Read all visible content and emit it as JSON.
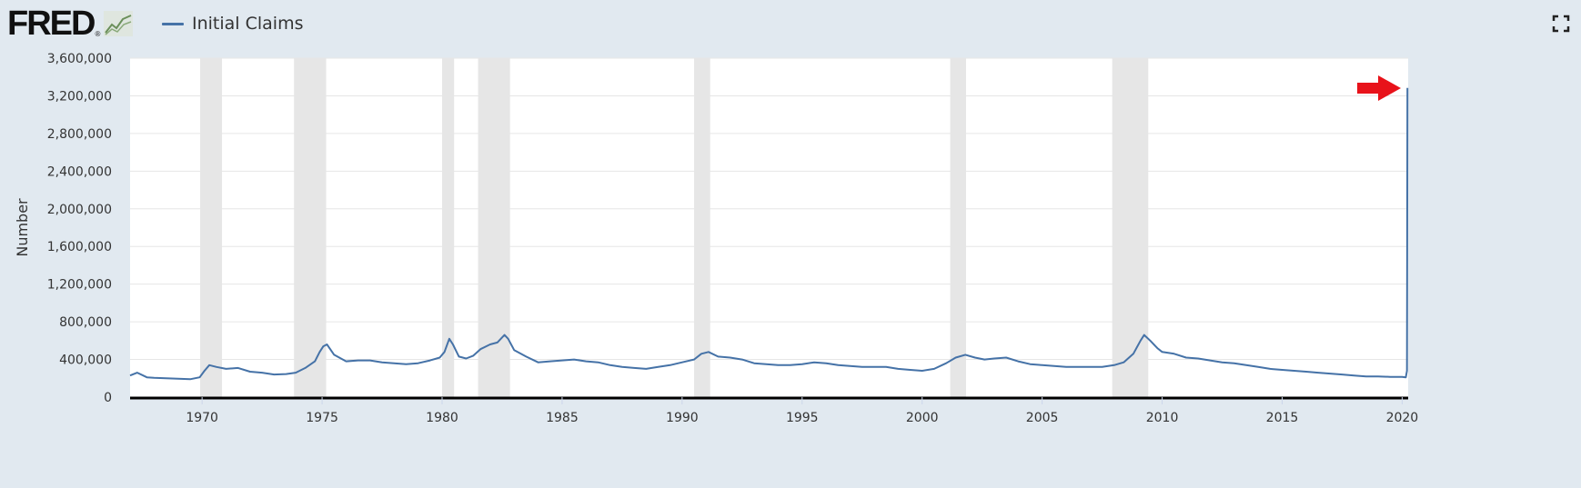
{
  "header": {
    "logo_text": "FRED",
    "logo_mark": "®",
    "logo_icon": "fred-graph-icon",
    "fullscreen_icon": "fullscreen-icon"
  },
  "colors": {
    "background": "#e1e9f0",
    "plot_background": "#ffffff",
    "series": "#4572a7",
    "recession": "#e6e6e6",
    "grid": "#e6e6e6",
    "arrow": "#e8121a"
  },
  "annotation": {
    "arrow_icon": "red-arrow-icon"
  },
  "chart_data": {
    "type": "line",
    "title": "",
    "xlabel": "",
    "ylabel": "Number",
    "xlim": [
      1967.0,
      2020.25
    ],
    "ylim": [
      0,
      3600000
    ],
    "yticks": [
      0,
      400000,
      800000,
      1200000,
      1600000,
      2000000,
      2400000,
      2800000,
      3200000,
      3600000
    ],
    "ytick_labels": [
      "0",
      "400,000",
      "800,000",
      "1,200,000",
      "1,600,000",
      "2,000,000",
      "2,400,000",
      "2,800,000",
      "3,200,000",
      "3,600,000"
    ],
    "xticks": [
      1970,
      1975,
      1980,
      1985,
      1990,
      1995,
      2000,
      2005,
      2010,
      2015,
      2020
    ],
    "xtick_labels": [
      "1970",
      "1975",
      "1980",
      "1985",
      "1990",
      "1995",
      "2000",
      "2005",
      "2010",
      "2015",
      "2020"
    ],
    "grid": "horizontal",
    "legend": "top-left",
    "recessions": [
      [
        1969.92,
        1970.83
      ],
      [
        1973.83,
        1975.17
      ],
      [
        1980.0,
        1980.5
      ],
      [
        1981.5,
        1982.83
      ],
      [
        1990.5,
        1991.17
      ],
      [
        2001.17,
        2001.83
      ],
      [
        2007.92,
        2009.42
      ]
    ],
    "series": [
      {
        "name": "Initial Claims",
        "x": [
          1967.0,
          1967.3,
          1967.7,
          1968.0,
          1968.5,
          1969.0,
          1969.5,
          1969.9,
          1970.1,
          1970.3,
          1970.6,
          1971.0,
          1971.5,
          1972.0,
          1972.5,
          1973.0,
          1973.5,
          1973.9,
          1974.3,
          1974.7,
          1974.9,
          1975.05,
          1975.2,
          1975.5,
          1976.0,
          1976.5,
          1977.0,
          1977.5,
          1978.0,
          1978.5,
          1979.0,
          1979.5,
          1979.9,
          1980.1,
          1980.3,
          1980.45,
          1980.7,
          1981.0,
          1981.3,
          1981.6,
          1982.0,
          1982.3,
          1982.6,
          1982.75,
          1983.0,
          1983.5,
          1984.0,
          1984.5,
          1985.0,
          1985.5,
          1986.0,
          1986.5,
          1987.0,
          1987.5,
          1988.0,
          1988.5,
          1989.0,
          1989.5,
          1990.0,
          1990.5,
          1990.8,
          1991.1,
          1991.5,
          1992.0,
          1992.5,
          1993.0,
          1993.5,
          1994.0,
          1994.5,
          1995.0,
          1995.5,
          1996.0,
          1996.5,
          1997.0,
          1997.5,
          1998.0,
          1998.5,
          1999.0,
          1999.5,
          2000.0,
          2000.5,
          2001.0,
          2001.4,
          2001.8,
          2002.2,
          2002.6,
          2003.0,
          2003.5,
          2004.0,
          2004.5,
          2005.0,
          2005.5,
          2006.0,
          2006.5,
          2007.0,
          2007.5,
          2008.0,
          2008.4,
          2008.8,
          2009.1,
          2009.25,
          2009.5,
          2009.8,
          2010.0,
          2010.5,
          2011.0,
          2011.5,
          2012.0,
          2012.5,
          2013.0,
          2013.5,
          2014.0,
          2014.5,
          2015.0,
          2015.5,
          2016.0,
          2016.5,
          2017.0,
          2017.5,
          2018.0,
          2018.5,
          2019.0,
          2019.5,
          2020.0,
          2020.15,
          2020.2,
          2020.22
        ],
        "values": [
          230000,
          260000,
          210000,
          205000,
          200000,
          195000,
          190000,
          210000,
          280000,
          340000,
          320000,
          300000,
          310000,
          270000,
          260000,
          240000,
          245000,
          260000,
          310000,
          380000,
          480000,
          540000,
          560000,
          450000,
          380000,
          390000,
          390000,
          370000,
          360000,
          350000,
          360000,
          390000,
          420000,
          480000,
          620000,
          560000,
          430000,
          410000,
          440000,
          510000,
          560000,
          580000,
          660000,
          620000,
          500000,
          430000,
          370000,
          380000,
          390000,
          400000,
          380000,
          370000,
          340000,
          320000,
          310000,
          300000,
          320000,
          340000,
          370000,
          400000,
          460000,
          480000,
          430000,
          420000,
          400000,
          360000,
          350000,
          340000,
          340000,
          350000,
          370000,
          360000,
          340000,
          330000,
          320000,
          320000,
          320000,
          300000,
          290000,
          280000,
          300000,
          360000,
          420000,
          450000,
          420000,
          400000,
          410000,
          420000,
          380000,
          350000,
          340000,
          330000,
          320000,
          320000,
          320000,
          320000,
          340000,
          370000,
          460000,
          600000,
          660000,
          600000,
          520000,
          480000,
          460000,
          420000,
          410000,
          390000,
          370000,
          360000,
          340000,
          320000,
          300000,
          290000,
          280000,
          270000,
          260000,
          250000,
          240000,
          230000,
          220000,
          220000,
          215000,
          215000,
          210000,
          280000,
          3283000
        ]
      }
    ]
  }
}
